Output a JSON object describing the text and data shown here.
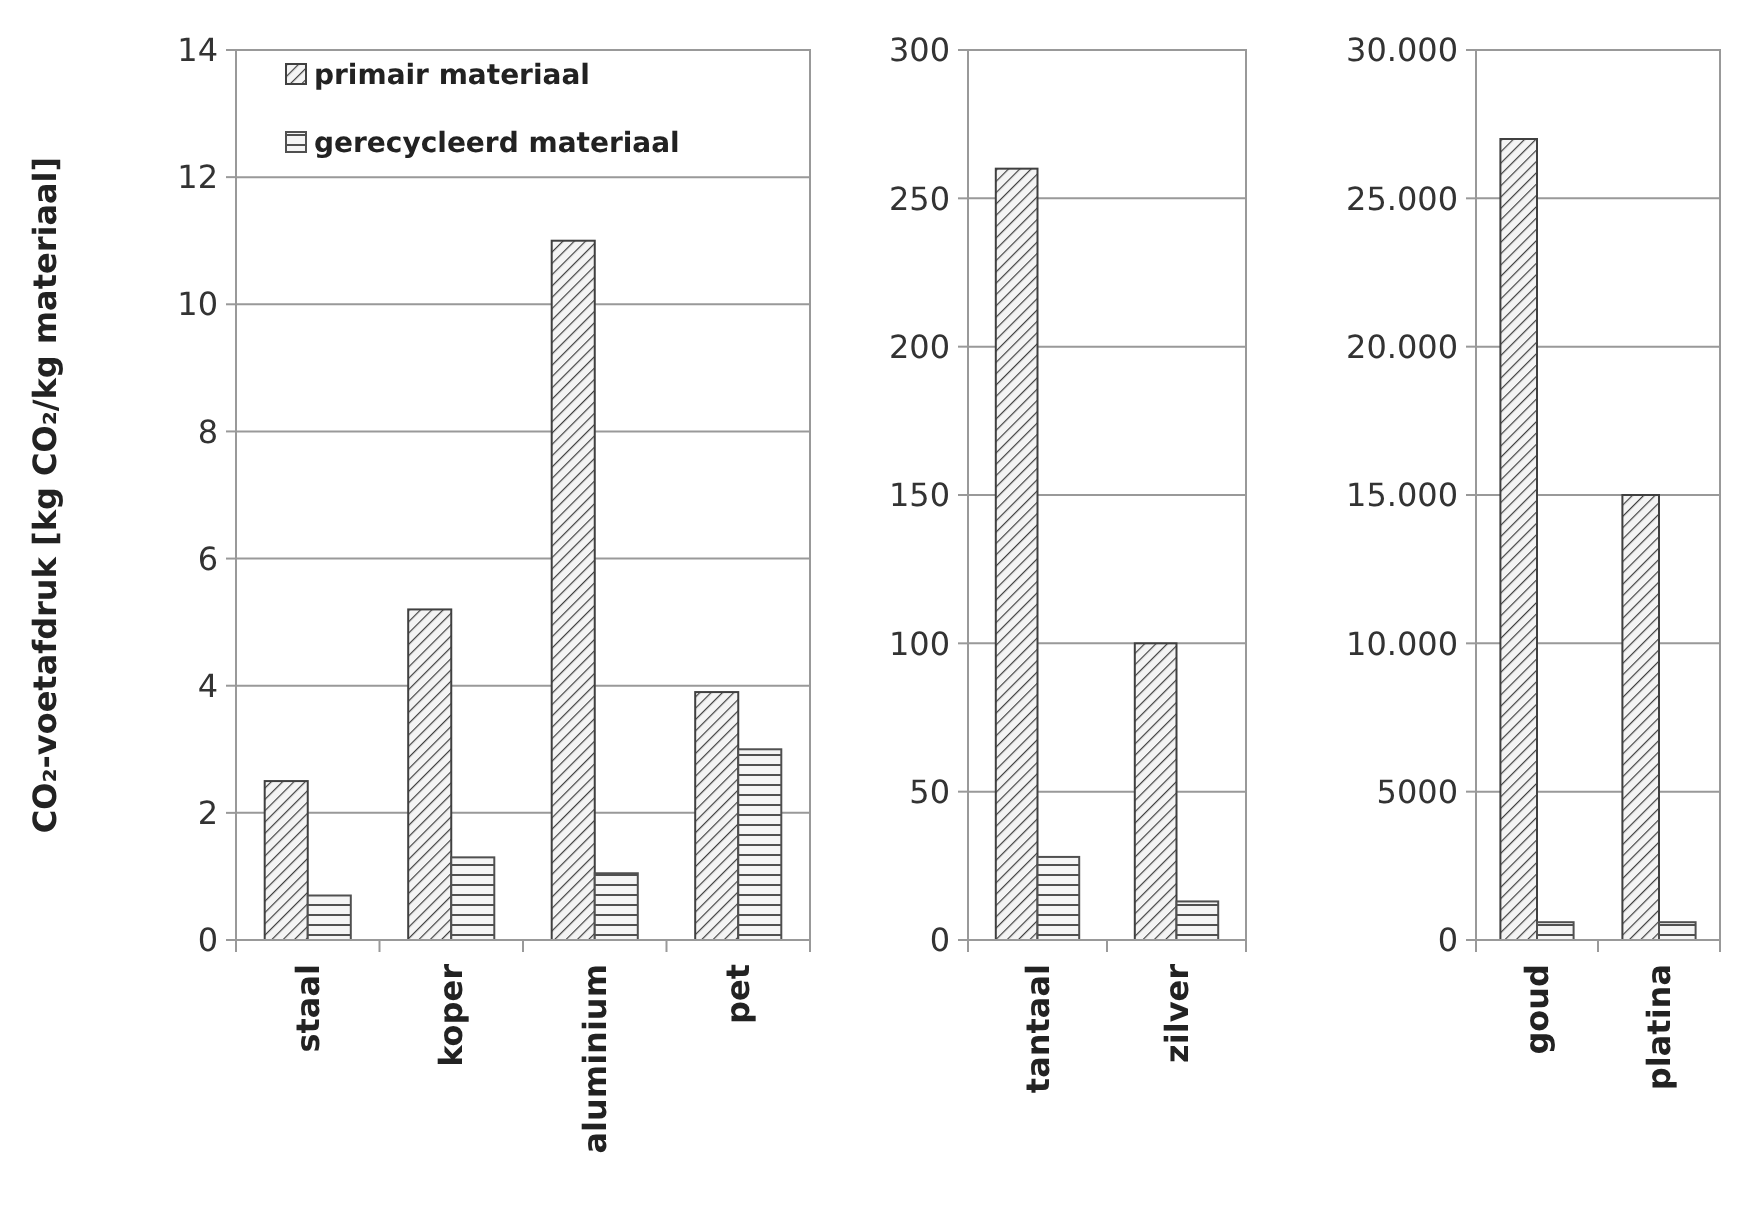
{
  "chart_data": [
    {
      "type": "bar",
      "ylabel": "CO₂-voetafdruk [kg CO₂/kg materiaal]",
      "categories": [
        "staal",
        "koper",
        "aluminium",
        "pet"
      ],
      "series": [
        {
          "name": "primair materiaal",
          "color": "#404040",
          "values": [
            2.5,
            5.2,
            11,
            3.9
          ]
        },
        {
          "name": "gerecycleerd materiaal",
          "color": "#505050",
          "values": [
            0.7,
            1.3,
            1.05,
            3.0
          ]
        }
      ],
      "ylim": [
        0,
        14
      ],
      "yticks": [
        0,
        2,
        4,
        6,
        8,
        10,
        12,
        14
      ],
      "grid": "y",
      "legend": "top left"
    },
    {
      "type": "bar",
      "categories": [
        "tantaal",
        "zilver"
      ],
      "series": [
        {
          "color": "#404040",
          "values": [
            260,
            100
          ]
        },
        {
          "color": "#505050",
          "values": [
            28,
            13
          ]
        }
      ],
      "ylim": [
        0,
        300
      ],
      "yticks": [
        0,
        50,
        100,
        150,
        200,
        250,
        300
      ],
      "grid": "y"
    },
    {
      "type": "bar",
      "categories": [
        "goud",
        "platina"
      ],
      "series": [
        {
          "color": "#404040",
          "values": [
            27000,
            15000
          ]
        },
        {
          "color": "#505050",
          "values": [
            600,
            600
          ]
        }
      ],
      "ylim": [
        0,
        30000
      ],
      "yticks": [
        0,
        5000,
        {
          "value": 10000,
          "label": "10.000"
        },
        {
          "value": 15000,
          "label": "15.000"
        },
        {
          "value": 20000,
          "label": "20.000"
        },
        {
          "value": 25000,
          "label": "25.000"
        },
        {
          "value": 30000,
          "label": "30.000"
        }
      ],
      "grid": "y"
    }
  ]
}
